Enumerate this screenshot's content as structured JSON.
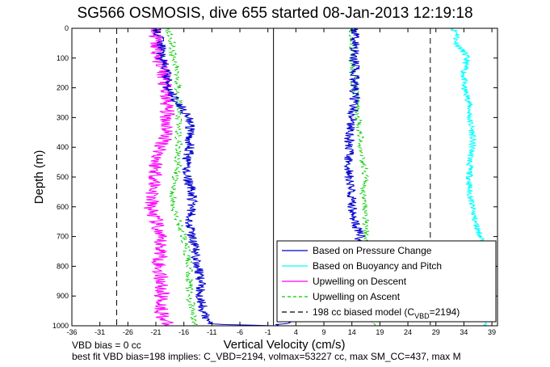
{
  "title": "SG566 OSMOSIS, dive 655 started 08-Jan-2013 12:19:18",
  "footer_line1": "VBD bias = 0 cc",
  "footer_line2": "best fit VBD bias=198 implies: C_VBD=2194, volmax=53227 cc, max SM_CC=437, max M",
  "colors": {
    "pressure": "#0000cc",
    "buoyancy": "#00ffff",
    "descent": "#ff00ff",
    "ascent": "#00cc00",
    "model": "#000000"
  },
  "chart_data": {
    "type": "line",
    "xlabel": "Vertical Velocity (cm/s)",
    "ylabel": "Depth (m)",
    "xlim": [
      -36,
      40
    ],
    "ylim": [
      0,
      1000
    ],
    "y_reversed": true,
    "grid": false,
    "legend_position": "bottom-right",
    "xticks": [
      -36,
      -31,
      -26,
      -21,
      -16,
      -11,
      -6,
      -1,
      4,
      9,
      14,
      19,
      24,
      29,
      34,
      39
    ],
    "yticks": [
      0,
      100,
      200,
      300,
      400,
      500,
      600,
      700,
      800,
      900,
      1000
    ],
    "reference_lines": {
      "solid_x": [
        0
      ],
      "dashed_x": [
        -28,
        28
      ]
    },
    "series": [
      {
        "name": "Based on Pressure Change",
        "style": "solid",
        "color_key": "pressure",
        "descent": {
          "depth": [
            0,
            50,
            100,
            150,
            200,
            250,
            300,
            350,
            400,
            450,
            500,
            550,
            600,
            650,
            700,
            750,
            800,
            850,
            900,
            950,
            980,
            995,
            1000
          ],
          "velocity": [
            -21,
            -20,
            -20,
            -19,
            -19,
            -17,
            -15,
            -15,
            -15,
            -15.5,
            -15.5,
            -14.5,
            -14.5,
            -15,
            -14.5,
            -14,
            -13.5,
            -13,
            -13,
            -12.5,
            -12,
            -11,
            0
          ]
        },
        "ascent": {
          "depth": [
            1000,
            950,
            900,
            850,
            800,
            750,
            700,
            650,
            600,
            550,
            500,
            450,
            400,
            350,
            300,
            250,
            200,
            150,
            100,
            50,
            20,
            0
          ],
          "velocity": [
            0,
            14.5,
            14,
            14,
            14,
            14,
            15.5,
            14.5,
            14,
            14,
            13.5,
            13.5,
            13.5,
            13.5,
            14,
            14.5,
            14.5,
            14.5,
            14.5,
            14.5,
            14.5,
            14.5
          ]
        }
      },
      {
        "name": "Based on Buoyancy and Pitch",
        "style": "solid",
        "color_key": "buoyancy",
        "depth": [
          0,
          20,
          40,
          60,
          80,
          100,
          150,
          200,
          250,
          300,
          350,
          400,
          450,
          500,
          550,
          600,
          650,
          700,
          750,
          800,
          850,
          900,
          950,
          1000
        ],
        "velocity": [
          32,
          33,
          32.5,
          33,
          34,
          34.5,
          34,
          34,
          35,
          35,
          35.5,
          35.5,
          35,
          35,
          35,
          35.5,
          36,
          37,
          38,
          38,
          38,
          38,
          38,
          38
        ]
      },
      {
        "name": "Upwelling on Descent",
        "style": "solid",
        "color_key": "descent",
        "depth": [
          0,
          50,
          100,
          150,
          200,
          250,
          300,
          350,
          400,
          450,
          500,
          550,
          600,
          650,
          700,
          750,
          800,
          850,
          900,
          950,
          980,
          1000
        ],
        "velocity": [
          -21,
          -21,
          -20.5,
          -19.5,
          -19.5,
          -19,
          -19,
          -19,
          -20,
          -21,
          -21,
          -21.5,
          -22,
          -21,
          -20.5,
          -20,
          -20.5,
          -20,
          -20,
          -20,
          -19.5,
          -19
        ]
      },
      {
        "name": "Upwelling on Ascent",
        "style": "dashed",
        "color_key": "ascent",
        "descent": {
          "depth": [
            0,
            50,
            100,
            150,
            200,
            250,
            300,
            350,
            400,
            450,
            500,
            550,
            600,
            650,
            700,
            750,
            800,
            850,
            900,
            950,
            1000
          ],
          "velocity": [
            -19,
            -18,
            -18,
            -17,
            -17,
            -17,
            -17,
            -17,
            -17,
            -17,
            -17.5,
            -18,
            -18,
            -17,
            -16,
            -15.5,
            -15,
            -15,
            -15,
            -14.5,
            -14
          ]
        },
        "ascent": {
          "depth": [
            1000,
            950,
            900,
            850,
            800,
            750,
            700,
            650,
            600,
            550,
            500,
            450,
            400,
            350,
            300,
            250,
            200,
            150,
            100,
            50,
            20,
            0
          ],
          "velocity": [
            18,
            17.5,
            17,
            17,
            16.5,
            16.5,
            16.5,
            16.5,
            16.5,
            16,
            16.5,
            16,
            15.5,
            15.5,
            15,
            15,
            14.5,
            14,
            14,
            14,
            14,
            14
          ]
        }
      },
      {
        "name": "198 cc biased model (C_VBD=2194)",
        "legend_main": "198 cc biased model (C",
        "legend_sub": "VBD",
        "legend_tail": "=2194)",
        "style": "dashed",
        "color_key": "model"
      }
    ]
  }
}
